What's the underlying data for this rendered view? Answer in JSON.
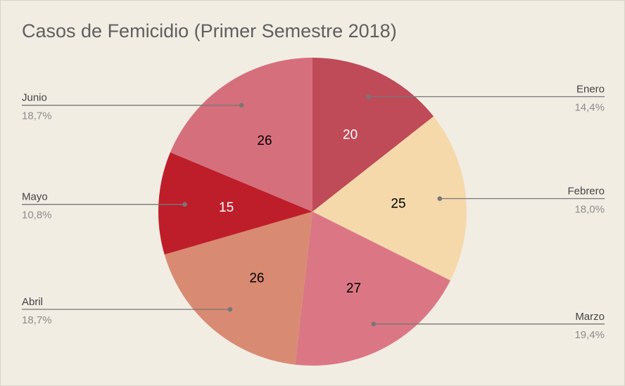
{
  "chart_data": {
    "type": "pie",
    "title": "Casos de Femicidio (Primer Semestre 2018)",
    "slices": [
      {
        "label": "Enero",
        "value": 20,
        "percent_label": "14,4%",
        "color": "#bf4a58",
        "value_color": "#ffffff",
        "side": "right"
      },
      {
        "label": "Febrero",
        "value": 25,
        "percent_label": "18,0%",
        "color": "#f5d9ab",
        "value_color": "#000000",
        "side": "right"
      },
      {
        "label": "Marzo",
        "value": 27,
        "percent_label": "19,4%",
        "color": "#db7784",
        "value_color": "#000000",
        "side": "right"
      },
      {
        "label": "Abril",
        "value": 26,
        "percent_label": "18,7%",
        "color": "#d98a73",
        "value_color": "#000000",
        "side": "left"
      },
      {
        "label": "Mayo",
        "value": 15,
        "percent_label": "10,8%",
        "color": "#be1e2a",
        "value_color": "#ffffff",
        "side": "left"
      },
      {
        "label": "Junio",
        "value": 26,
        "percent_label": "18,7%",
        "color": "#d66f7c",
        "value_color": "#000000",
        "side": "left"
      }
    ],
    "start_angle": "12 o'clock",
    "direction": "clockwise",
    "legend": "none",
    "label_line_color": "#777777",
    "label_text_color": "#444444",
    "percent_text_color": "#8c8c8c"
  }
}
